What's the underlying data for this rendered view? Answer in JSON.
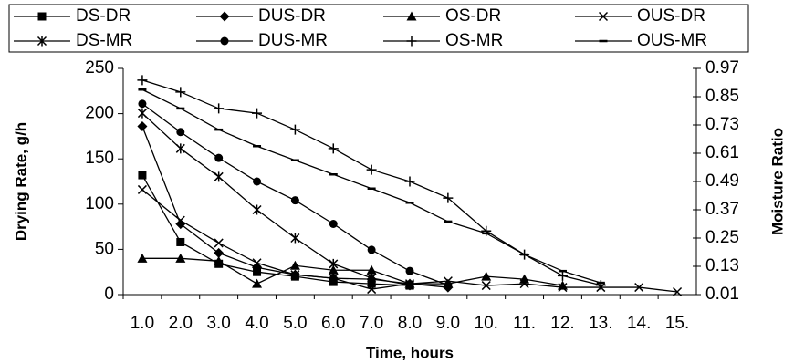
{
  "chart_data": {
    "type": "line",
    "x_label": "Time, hours",
    "y_label": "Drying Rate, g/h",
    "y2_label": "Moisture Ratio",
    "categories": [
      "1.0",
      "2.0",
      "3.0",
      "4.0",
      "5.0",
      "6.0",
      "7.0",
      "8.0",
      "9.0",
      "10.",
      "11.",
      "12.",
      "13.",
      "14.",
      "15."
    ],
    "ylim": [
      0,
      250
    ],
    "yticks": [
      0,
      50,
      100,
      150,
      200,
      250
    ],
    "y2lim": [
      0.01,
      0.97
    ],
    "y2ticks": [
      0.01,
      0.13,
      0.25,
      0.37,
      0.49,
      0.61,
      0.73,
      0.85,
      0.97
    ],
    "grid": false,
    "legend": "top",
    "series": [
      {
        "name": "DS-DR",
        "color": "#000000",
        "marker": "square",
        "values": [
          132,
          58,
          34,
          25,
          20,
          14,
          12,
          10,
          null,
          null,
          null,
          null,
          null,
          null,
          null
        ]
      },
      {
        "name": "DUS-DR",
        "color": "#000000",
        "marker": "diamond",
        "values": [
          186,
          78,
          46,
          30,
          22,
          18,
          17,
          12,
          8,
          null,
          null,
          null,
          null,
          null,
          null
        ]
      },
      {
        "name": "OS-DR",
        "color": "#000000",
        "marker": "triangle",
        "values": [
          40,
          40,
          37,
          12,
          32,
          27,
          27,
          12,
          12,
          20,
          17,
          10,
          null,
          null,
          null
        ]
      },
      {
        "name": "OUS-DR",
        "color": "#000000",
        "marker": "x",
        "values": [
          116,
          82,
          57,
          35,
          22,
          18,
          6,
          12,
          15,
          10,
          12,
          8,
          8,
          8,
          3
        ]
      },
      {
        "name": "DS-MR",
        "color": "#000000",
        "marker": "asterisk",
        "axis": "y2",
        "values": [
          0.78,
          0.63,
          0.51,
          0.37,
          0.25,
          0.14,
          0.08,
          0.05,
          null,
          null,
          null,
          null,
          null,
          null,
          null
        ]
      },
      {
        "name": "DUS-MR",
        "color": "#000000",
        "marker": "circle",
        "axis": "y2",
        "values": [
          0.82,
          0.7,
          0.59,
          0.49,
          0.41,
          0.31,
          0.2,
          0.11,
          0.05,
          null,
          null,
          null,
          null,
          null,
          null
        ]
      },
      {
        "name": "OS-MR",
        "color": "#000000",
        "marker": "plus",
        "axis": "y2",
        "values": [
          0.92,
          0.87,
          0.8,
          0.78,
          0.71,
          0.63,
          0.54,
          0.49,
          0.42,
          0.28,
          0.18,
          0.09,
          0.05,
          null,
          null
        ]
      },
      {
        "name": "OUS-MR",
        "color": "#000000",
        "marker": "dash",
        "axis": "y2",
        "values": [
          0.88,
          0.8,
          0.71,
          0.64,
          0.58,
          0.52,
          0.46,
          0.4,
          0.32,
          0.27,
          0.18,
          0.11,
          0.06,
          null,
          null
        ]
      }
    ]
  }
}
